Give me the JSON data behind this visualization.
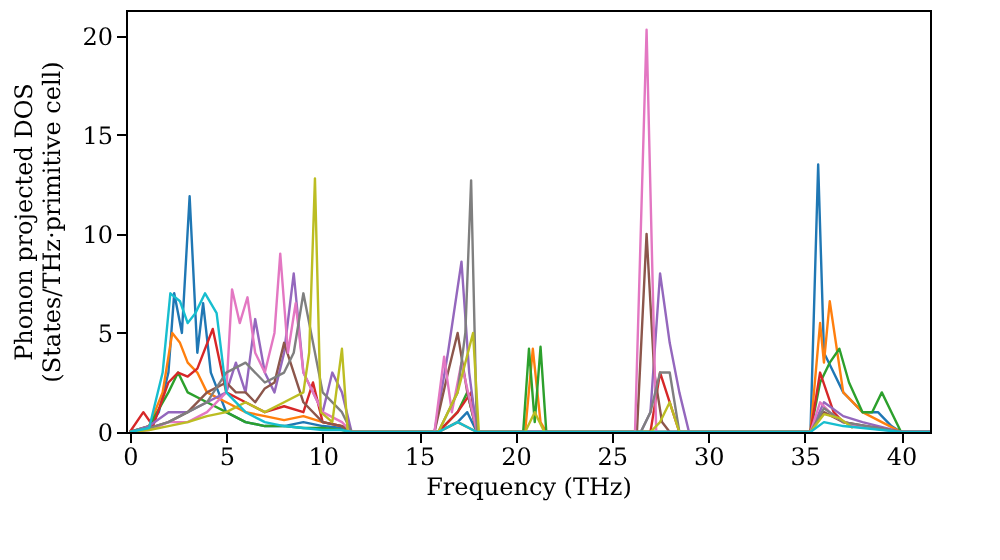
{
  "chart_data": {
    "type": "line",
    "xlabel": "Frequency (THz)",
    "ylabel": "Phonon projected DOS\n(States/THz·primitive cell)",
    "xlim": [
      -0.2,
      41.5
    ],
    "ylim": [
      0,
      21.3
    ],
    "xticks": [
      0,
      5,
      10,
      15,
      20,
      25,
      30,
      35,
      40
    ],
    "yticks": [
      0,
      5,
      10,
      15,
      20
    ],
    "grid": false,
    "marker": "none",
    "line_style": "solid",
    "series": [
      {
        "color": "#1f77b4",
        "x": [
          0,
          1,
          1.5,
          2,
          2.3,
          2.7,
          3.1,
          3.5,
          3.8,
          4.2,
          5,
          6,
          7,
          8,
          9,
          10,
          11,
          11.5,
          16,
          17,
          17.5,
          18,
          35.3,
          35.7,
          36,
          36.5,
          37,
          37.5,
          38,
          38.8,
          39.5,
          40,
          41.5
        ],
        "values": [
          0,
          0.2,
          1,
          3,
          7,
          5,
          11.9,
          4,
          6.5,
          3,
          1,
          0.5,
          0.3,
          0.3,
          0.5,
          0.3,
          0.2,
          0,
          0,
          0.5,
          1,
          0,
          0,
          13.5,
          4,
          3,
          2,
          1.5,
          1,
          1,
          0.3,
          0,
          0
        ]
      },
      {
        "color": "#ff7f0e",
        "x": [
          0,
          1,
          1.7,
          2.2,
          2.6,
          3,
          3.5,
          4,
          5,
          6,
          7,
          8,
          9,
          10,
          11,
          11.5,
          16,
          17,
          18,
          20.5,
          20.9,
          21.3,
          21.6,
          35.3,
          35.8,
          36,
          36.3,
          37,
          38,
          39,
          40,
          41.5
        ],
        "values": [
          0,
          0.3,
          2,
          5,
          4.5,
          3.5,
          3,
          2,
          1.5,
          1,
          0.8,
          0.6,
          0.8,
          0.5,
          0.3,
          0,
          0,
          0.5,
          0,
          0,
          4.2,
          0.5,
          0,
          0,
          5.5,
          3.5,
          6.6,
          2,
          1,
          0.5,
          0,
          0
        ]
      },
      {
        "color": "#2ca02c",
        "x": [
          0,
          1,
          2,
          2.5,
          3,
          4,
          5,
          6,
          7,
          8,
          9,
          10,
          11,
          11.5,
          16,
          17,
          17.5,
          18,
          20.4,
          20.7,
          21,
          21.3,
          21.6,
          35.3,
          35.8,
          36.3,
          36.8,
          37.3,
          38,
          38.5,
          39,
          39.5,
          40,
          41.5
        ],
        "values": [
          0,
          0.3,
          2,
          3,
          2,
          1.5,
          1,
          0.5,
          0.3,
          0.3,
          0.2,
          0.2,
          0.1,
          0,
          0,
          1,
          2,
          0,
          0,
          4.2,
          0.5,
          4.3,
          0,
          0,
          2.5,
          3.5,
          4.2,
          2.5,
          1,
          1,
          2,
          1,
          0,
          0
        ]
      },
      {
        "color": "#d62728",
        "x": [
          0,
          0.7,
          1.2,
          2,
          2.5,
          3,
          3.5,
          4.3,
          5,
          6,
          7,
          8,
          9,
          9.5,
          10,
          11,
          11.5,
          16,
          17,
          17.7,
          18,
          27,
          27.5,
          28,
          28.5,
          35.3,
          35.8,
          36.5,
          37,
          38,
          40,
          41.5
        ],
        "values": [
          0,
          1,
          0.3,
          2.5,
          3,
          2.8,
          3.2,
          5.2,
          2,
          1.5,
          1,
          1.3,
          1,
          2.5,
          0.5,
          0.3,
          0,
          0,
          1,
          2,
          0,
          0,
          3,
          1.5,
          0,
          0,
          3,
          1,
          0.5,
          0.3,
          0,
          0
        ]
      },
      {
        "color": "#9467bd",
        "x": [
          0,
          1,
          2,
          3,
          4,
          5,
          5.5,
          6,
          6.5,
          7,
          7.5,
          8,
          8.5,
          9,
          10,
          10.5,
          11,
          11.5,
          15.8,
          16.5,
          17.2,
          17.6,
          18,
          26.5,
          27,
          27.5,
          28,
          28.5,
          29,
          35.3,
          36,
          37,
          38,
          40,
          41.5
        ],
        "values": [
          0,
          0.3,
          1,
          1,
          1.5,
          2,
          3.5,
          2,
          5.7,
          3,
          2,
          4,
          8,
          3,
          1,
          3,
          2,
          0,
          0,
          4,
          8.6,
          3,
          0,
          0,
          1,
          8,
          4.5,
          2,
          0,
          0,
          1.5,
          0.8,
          0.5,
          0,
          0
        ]
      },
      {
        "color": "#8c564b",
        "x": [
          0,
          1,
          2,
          3,
          4,
          5,
          5.5,
          6,
          6.5,
          7,
          7.5,
          8,
          8.5,
          9,
          10,
          11,
          11.5,
          15.8,
          16.5,
          17,
          17.5,
          18,
          26.3,
          26.8,
          27.2,
          27.6,
          28,
          35.3,
          36,
          37,
          40,
          41.5
        ],
        "values": [
          0,
          0.2,
          0.5,
          1,
          2,
          2.5,
          2,
          2,
          1.5,
          2.2,
          2.5,
          4.5,
          3,
          1.5,
          0.5,
          0.3,
          0,
          0,
          3,
          5,
          2,
          0,
          0,
          10,
          3,
          0.5,
          0,
          0,
          1,
          0.5,
          0,
          0
        ]
      },
      {
        "color": "#e377c2",
        "x": [
          0,
          1,
          2,
          3,
          4,
          5,
          5.3,
          5.7,
          6.1,
          6.5,
          7,
          7.5,
          7.8,
          8.2,
          8.6,
          9,
          10,
          11,
          11.5,
          15.8,
          16.3,
          16.7,
          17.2,
          18,
          26.2,
          26.8,
          27.3,
          35.3,
          35.8,
          36.5,
          37.5,
          40,
          41.5
        ],
        "values": [
          0,
          0.1,
          0.5,
          0.5,
          1,
          2,
          7.2,
          5.5,
          6.8,
          4,
          3,
          5,
          9,
          4,
          6.5,
          3,
          1,
          0.5,
          0,
          0,
          3.8,
          1,
          3.5,
          0,
          0,
          20.3,
          0,
          0,
          1.5,
          0.8,
          0.3,
          0,
          0
        ]
      },
      {
        "color": "#7f7f7f",
        "x": [
          0,
          1,
          2,
          3,
          4,
          5,
          6,
          7,
          8,
          8.5,
          9,
          10,
          11,
          11.5,
          16,
          17,
          17.4,
          17.7,
          18,
          26.5,
          27,
          27.5,
          28,
          28.5,
          35.3,
          36,
          37,
          40,
          41.5
        ],
        "values": [
          0,
          0.2,
          0.5,
          1,
          1.5,
          3,
          3.5,
          2.5,
          3,
          4,
          7,
          2,
          1,
          0,
          0,
          2,
          5,
          12.7,
          0,
          0,
          1,
          3,
          3,
          0,
          0,
          1.2,
          0.5,
          0,
          0
        ]
      },
      {
        "color": "#bcbd22",
        "x": [
          0,
          1,
          2,
          3,
          4,
          5,
          6,
          7,
          8,
          9,
          9.3,
          9.6,
          9.9,
          10.5,
          11,
          11.3,
          16,
          17,
          17.8,
          18.1,
          20.5,
          21,
          21.5,
          27,
          27.5,
          28,
          28.5,
          35.3,
          36,
          36.8,
          37.5
        ],
        "values": [
          0,
          0.1,
          0.3,
          0.5,
          0.8,
          1,
          1.5,
          1,
          1.5,
          2,
          4,
          12.8,
          1,
          0.5,
          4.2,
          0,
          0,
          2,
          5,
          0,
          0,
          1,
          0,
          0,
          0.5,
          1.5,
          0,
          0,
          0.9,
          0.7,
          0.2
        ]
      },
      {
        "color": "#17becf",
        "x": [
          0,
          1,
          1.7,
          2.1,
          2.6,
          3,
          3.4,
          3.9,
          4.5,
          5,
          6,
          7,
          8,
          9,
          10,
          11,
          11.5,
          16,
          17,
          18,
          35.3,
          36,
          37,
          40,
          41.5
        ],
        "values": [
          0,
          0.2,
          3,
          7,
          6.6,
          5.5,
          6,
          7,
          6,
          2,
          1,
          0.5,
          0.3,
          0.2,
          0.1,
          0.1,
          0,
          0,
          0.5,
          0,
          0,
          0.5,
          0.3,
          0,
          0
        ]
      }
    ]
  }
}
